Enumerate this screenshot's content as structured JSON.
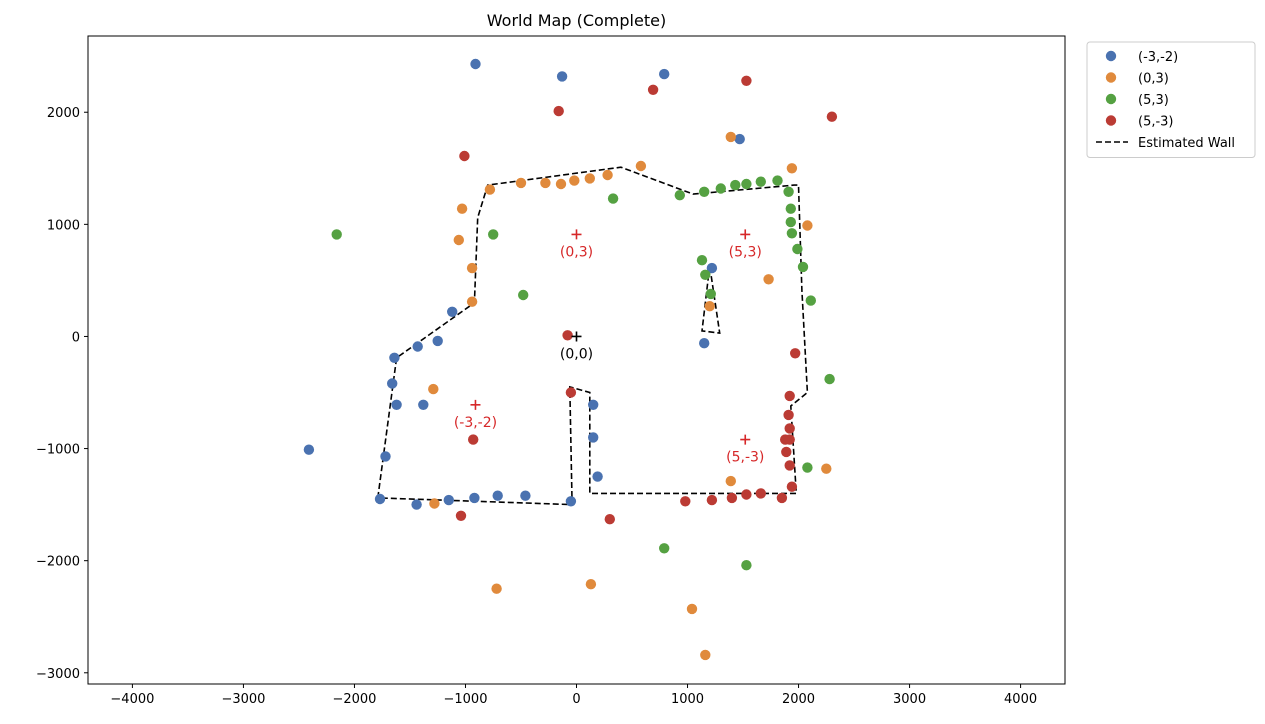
{
  "chart_data": {
    "type": "scatter",
    "title": "World Map (Complete)",
    "xlabel": "",
    "ylabel": "",
    "xlim": [
      -4400,
      4400
    ],
    "ylim": [
      -3100,
      2680
    ],
    "xticks": [
      -4000,
      -3000,
      -2000,
      -1000,
      0,
      1000,
      2000,
      3000,
      4000
    ],
    "yticks": [
      -3000,
      -2000,
      -1000,
      0,
      1000,
      2000
    ],
    "xtick_labels": [
      "−4000",
      "−3000",
      "−2000",
      "−1000",
      "0",
      "1000",
      "2000",
      "3000",
      "4000"
    ],
    "ytick_labels": [
      "−3000",
      "−2000",
      "−1000",
      "0",
      "1000",
      "2000"
    ],
    "grid": false,
    "legend_position": "outside-top-right",
    "series": [
      {
        "name": "(-3,-2)",
        "color": "#4a72b0",
        "points": [
          [
            -910,
            2430
          ],
          [
            -130,
            2320
          ],
          [
            790,
            2340
          ],
          [
            1470,
            1760
          ],
          [
            1220,
            610
          ],
          [
            1150,
            -60
          ],
          [
            -1120,
            220
          ],
          [
            -1250,
            -40
          ],
          [
            -1430,
            -90
          ],
          [
            -1640,
            -190
          ],
          [
            -1660,
            -420
          ],
          [
            -1620,
            -610
          ],
          [
            -1380,
            -610
          ],
          [
            -2410,
            -1010
          ],
          [
            -1720,
            -1070
          ],
          [
            -1770,
            -1450
          ],
          [
            -1440,
            -1500
          ],
          [
            -1150,
            -1460
          ],
          [
            -920,
            -1440
          ],
          [
            -710,
            -1420
          ],
          [
            -460,
            -1420
          ],
          [
            -50,
            -1470
          ],
          [
            150,
            -610
          ],
          [
            150,
            -900
          ],
          [
            190,
            -1250
          ]
        ]
      },
      {
        "name": "(0,3)",
        "color": "#e08a3c",
        "points": [
          [
            -780,
            1310
          ],
          [
            -500,
            1370
          ],
          [
            -280,
            1370
          ],
          [
            -140,
            1360
          ],
          [
            -20,
            1390
          ],
          [
            120,
            1410
          ],
          [
            280,
            1440
          ],
          [
            580,
            1520
          ],
          [
            1390,
            1780
          ],
          [
            1940,
            1500
          ],
          [
            2080,
            990
          ],
          [
            1730,
            510
          ],
          [
            1200,
            270
          ],
          [
            -1030,
            1140
          ],
          [
            -1060,
            860
          ],
          [
            -940,
            610
          ],
          [
            -940,
            310
          ],
          [
            -1290,
            -470
          ],
          [
            -1280,
            -1490
          ],
          [
            -720,
            -2250
          ],
          [
            130,
            -2210
          ],
          [
            1040,
            -2430
          ],
          [
            1160,
            -2840
          ],
          [
            1390,
            -1290
          ],
          [
            2250,
            -1180
          ]
        ]
      },
      {
        "name": "(5,3)",
        "color": "#55a142",
        "points": [
          [
            1150,
            1290
          ],
          [
            1300,
            1320
          ],
          [
            1430,
            1350
          ],
          [
            1530,
            1360
          ],
          [
            1660,
            1380
          ],
          [
            1810,
            1390
          ],
          [
            1910,
            1290
          ],
          [
            1930,
            1140
          ],
          [
            1930,
            1020
          ],
          [
            1940,
            920
          ],
          [
            1990,
            780
          ],
          [
            2040,
            620
          ],
          [
            2110,
            320
          ],
          [
            2280,
            -380
          ],
          [
            2080,
            -1170
          ],
          [
            1530,
            -2040
          ],
          [
            790,
            -1890
          ],
          [
            330,
            1230
          ],
          [
            930,
            1260
          ],
          [
            -750,
            910
          ],
          [
            -2160,
            910
          ],
          [
            -480,
            370
          ],
          [
            1130,
            680
          ],
          [
            1160,
            550
          ],
          [
            1210,
            380
          ]
        ]
      },
      {
        "name": "(5,-3)",
        "color": "#bb3b34",
        "points": [
          [
            1530,
            2280
          ],
          [
            690,
            2200
          ],
          [
            -160,
            2010
          ],
          [
            2300,
            1960
          ],
          [
            -1010,
            1610
          ],
          [
            1970,
            -150
          ],
          [
            -80,
            10
          ],
          [
            -50,
            -500
          ],
          [
            -930,
            -920
          ],
          [
            1920,
            -530
          ],
          [
            1910,
            -700
          ],
          [
            1920,
            -820
          ],
          [
            1880,
            -920
          ],
          [
            1920,
            -920
          ],
          [
            1890,
            -1030
          ],
          [
            1920,
            -1150
          ],
          [
            1940,
            -1340
          ],
          [
            1850,
            -1440
          ],
          [
            1660,
            -1400
          ],
          [
            1530,
            -1410
          ],
          [
            1400,
            -1440
          ],
          [
            1220,
            -1460
          ],
          [
            980,
            -1470
          ],
          [
            300,
            -1630
          ],
          [
            -1040,
            -1600
          ]
        ]
      }
    ],
    "wall": {
      "name": "Estimated Wall",
      "color": "#000000",
      "paths": [
        [
          [
            -1790,
            -1440
          ],
          [
            -1620,
            -190
          ],
          [
            -920,
            300
          ],
          [
            -890,
            1060
          ],
          [
            -800,
            1350
          ],
          [
            400,
            1510
          ],
          [
            1050,
            1270
          ],
          [
            1960,
            1350
          ],
          [
            2000,
            1350
          ],
          [
            2030,
            410
          ],
          [
            2080,
            -500
          ],
          [
            1930,
            -620
          ],
          [
            1980,
            -1400
          ],
          [
            120,
            -1400
          ],
          [
            120,
            -500
          ],
          [
            -60,
            -450
          ],
          [
            -40,
            -1500
          ],
          [
            -1790,
            -1440
          ]
        ],
        [
          [
            1200,
            630
          ],
          [
            1130,
            50
          ],
          [
            1290,
            30
          ],
          [
            1200,
            630
          ]
        ]
      ]
    },
    "annotations": [
      {
        "x": 0,
        "y": 0,
        "marker_color": "#000000",
        "text": "(0,0)",
        "text_color": "#000000"
      },
      {
        "x": 0,
        "y": 910,
        "marker_color": "#d62728",
        "text": "(0,3)",
        "text_color": "#d62728"
      },
      {
        "x": 1520,
        "y": 910,
        "marker_color": "#d62728",
        "text": "(5,3)",
        "text_color": "#d62728"
      },
      {
        "x": -910,
        "y": -610,
        "marker_color": "#d62728",
        "text": "(-3,-2)",
        "text_color": "#d62728"
      },
      {
        "x": 1520,
        "y": -920,
        "marker_color": "#d62728",
        "text": "(5,-3)",
        "text_color": "#d62728"
      }
    ]
  }
}
